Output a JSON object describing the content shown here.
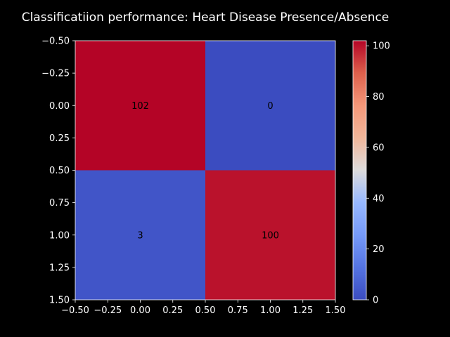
{
  "chart_data": {
    "type": "heatmap",
    "title": "Classificatiion performance: Heart Disease Presence/Absence",
    "xlabel": "",
    "ylabel": "",
    "matrix": [
      [
        102,
        0
      ],
      [
        3,
        100
      ]
    ],
    "cell_labels": [
      [
        "102",
        "0"
      ],
      [
        "3",
        "100"
      ]
    ],
    "xlim": [
      -0.5,
      1.5
    ],
    "ylim": [
      1.5,
      -0.5
    ],
    "x_ticks": [
      -0.5,
      -0.25,
      0.0,
      0.25,
      0.5,
      0.75,
      1.0,
      1.25,
      1.5
    ],
    "x_tick_labels": [
      "−0.50",
      "−0.25",
      "0.00",
      "0.25",
      "0.50",
      "0.75",
      "1.00",
      "1.25",
      "1.50"
    ],
    "y_ticks": [
      -0.5,
      -0.25,
      0.0,
      0.25,
      0.5,
      0.75,
      1.0,
      1.25,
      1.5
    ],
    "y_tick_labels": [
      "−0.50",
      "−0.25",
      "0.00",
      "0.25",
      "0.50",
      "0.75",
      "1.00",
      "1.25",
      "1.50"
    ],
    "colormap": "coolwarm",
    "colorbar": {
      "range": [
        0,
        102
      ],
      "ticks": [
        0,
        20,
        40,
        60,
        80,
        100
      ],
      "tick_labels": [
        "0",
        "20",
        "40",
        "60",
        "80",
        "100"
      ]
    },
    "grid": false
  },
  "colors": {
    "background": "#000000",
    "foreground": "#ffffff",
    "cell_text": "#000000"
  }
}
